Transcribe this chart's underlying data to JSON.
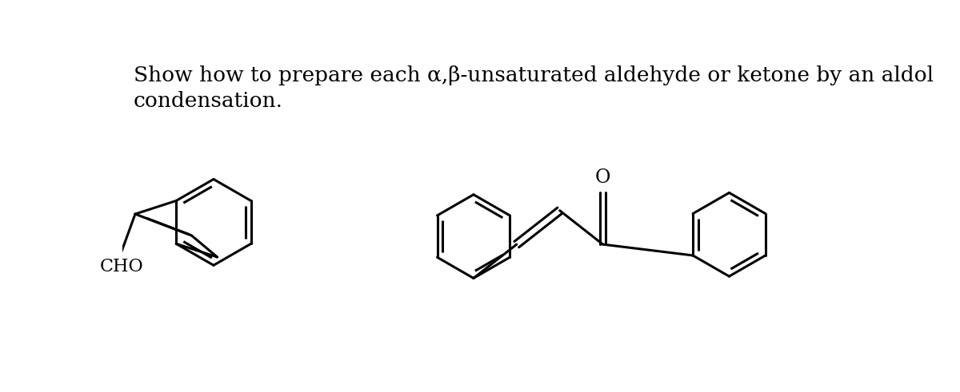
{
  "title_line1": "Show how to prepare each α,β-unsaturated aldehyde or ketone by an aldol",
  "title_line2": "condensation.",
  "title_fontsize": 19,
  "bg_color": "#ffffff",
  "line_color": "#000000",
  "line_width": 2.2,
  "font_family": "DejaVu Serif",
  "cho_label": "CHO",
  "o_label": "O"
}
